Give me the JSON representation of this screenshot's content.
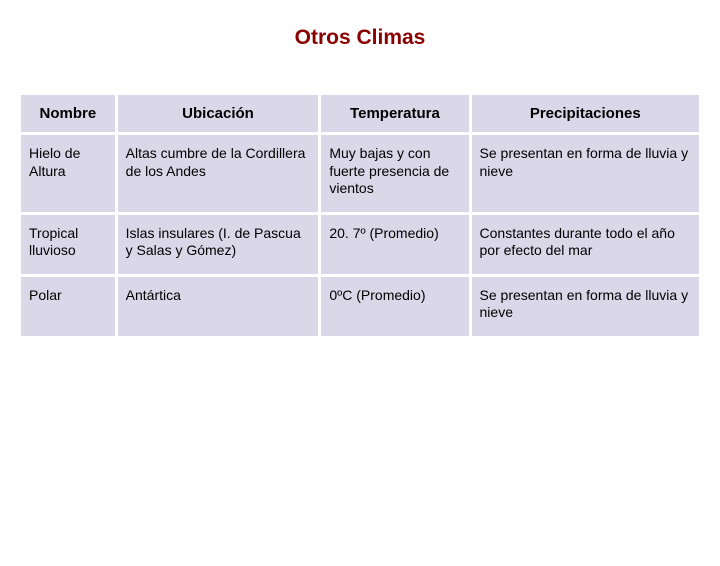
{
  "title": "Otros Climas",
  "table": {
    "type": "table",
    "header_bg": "#d9d7e8",
    "cell_bg": "#d9d7e8",
    "border_spacing": 3,
    "title_color": "#8b0000",
    "title_fontsize": 21,
    "header_fontsize": 15,
    "cell_fontsize": 14,
    "columns": [
      {
        "label": "Nombre",
        "width_pct": 14,
        "align": "center"
      },
      {
        "label": "Ubicación",
        "width_pct": 30,
        "align": "center"
      },
      {
        "label": "Temperatura",
        "width_pct": 22,
        "align": "center"
      },
      {
        "label": "Precipitaciones",
        "width_pct": 34,
        "align": "center"
      }
    ],
    "rows": [
      {
        "nombre": "Hielo de Altura",
        "ubicacion": "Altas cumbre de la Cordillera de los Andes",
        "temperatura": "Muy bajas y con fuerte presencia de vientos",
        "precipitaciones": "Se presentan en forma de lluvia y nieve"
      },
      {
        "nombre": "Tropical lluvioso",
        "ubicacion": "Islas insulares (I. de Pascua y Salas y Gómez)",
        "temperatura": "20. 7º (Promedio)",
        "precipitaciones": "Constantes durante todo el año por efecto del mar"
      },
      {
        "nombre": "Polar",
        "ubicacion": "Antártica",
        "temperatura": "0ºC (Promedio)",
        "precipitaciones": "Se presentan en forma de lluvia y nieve"
      }
    ]
  }
}
